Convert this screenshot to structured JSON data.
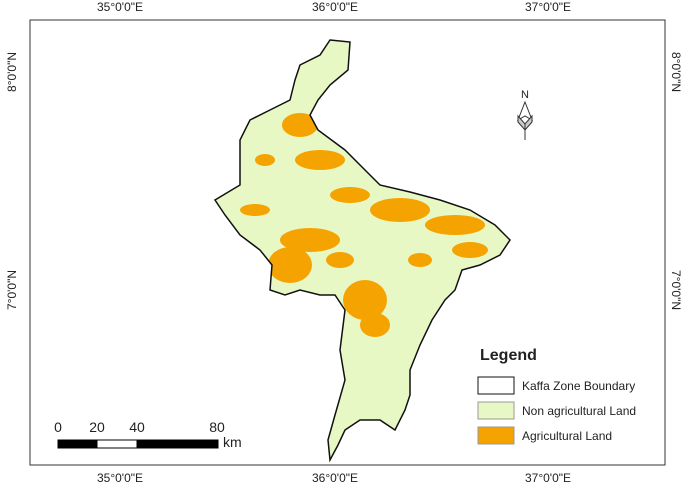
{
  "map": {
    "grid_labels": {
      "top": [
        "35°0'0\"E",
        "36°0'0\"E",
        "37°0'0\"E"
      ],
      "bottom": [
        "35°0'0\"E",
        "36°0'0\"E",
        "37°0'0\"E"
      ],
      "left": [
        "8°0'0\"N",
        "7°0'0\"N"
      ],
      "right": [
        "8°0'0\"N",
        "7°0'0\"N"
      ]
    },
    "north_arrow": "N",
    "legend": {
      "title": "Legend",
      "items": [
        "Kaffa Zone Boundary",
        "Non agricultural Land",
        "Agricultural Land"
      ]
    },
    "scale_bar": {
      "labels": [
        "0",
        "20",
        "40",
        "80"
      ],
      "unit": "km"
    }
  }
}
